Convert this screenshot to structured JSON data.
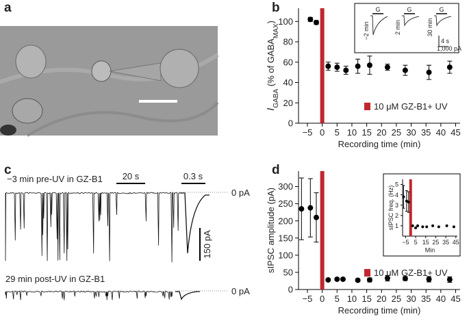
{
  "panel_labels": [
    "a",
    "b",
    "c",
    "d"
  ],
  "chart_data": [
    {
      "type": "scatter",
      "x": [
        -4,
        -2,
        2,
        5,
        8,
        12,
        16,
        22,
        28,
        36,
        43
      ],
      "values": [
        102,
        99,
        56,
        55,
        52,
        56,
        57,
        55,
        52,
        50,
        55
      ],
      "errors": [
        2,
        2,
        4,
        4,
        4,
        7,
        9,
        3,
        5,
        7,
        6
      ],
      "color": "#000000",
      "bar": {
        "name": "10 μM GZ-B1+ UV",
        "x": 0,
        "color": "#c0282e"
      },
      "legend": "lower right",
      "xlim": [
        -8,
        46.5
      ],
      "ylim": [
        0,
        113
      ],
      "xticks": [
        {
          "value": -5,
          "label": "−5"
        },
        0,
        5,
        10,
        15,
        20,
        25,
        30,
        35,
        40,
        45
      ],
      "yticks": [
        0,
        20,
        40,
        60,
        80,
        100
      ],
      "xlabel": "Recording time (min)",
      "ylabel": [
        {
          "text": "I",
          "sub": false
        },
        {
          "text": "GABA",
          "sub": true
        },
        {
          "text": " (% of GABA",
          "sub": false
        },
        {
          "text": "MAX",
          "sub": true
        },
        {
          "text": ")",
          "sub": false
        }
      ]
    },
    {
      "type": "scatter",
      "x": [
        -7,
        -4,
        -2,
        2,
        5,
        7,
        12,
        16,
        22,
        28,
        36,
        43
      ],
      "values": [
        235,
        238,
        210,
        28,
        30,
        30,
        27,
        28,
        33,
        32,
        30,
        29
      ],
      "errors": [
        90,
        85,
        72,
        3,
        3,
        3,
        4,
        6,
        8,
        6,
        8,
        8
      ],
      "color": "#000000",
      "bar": {
        "name": "10 μM GZ-B1+ UV",
        "x": 0,
        "color": "#c0282e"
      },
      "legend": "lower right",
      "xlim": [
        -8,
        46.5
      ],
      "ylim": [
        0,
        345
      ],
      "xticks": [
        {
          "value": -5,
          "label": "−5"
        },
        0,
        5,
        10,
        15,
        20,
        25,
        30,
        35,
        40,
        45
      ],
      "yticks": [
        0,
        50,
        100,
        150,
        200,
        250,
        300
      ],
      "xlabel": "Recording time (min)",
      "ylabel": "sIPSC amplitude (pA)"
    },
    {
      "type": "scatter",
      "x": [
        -7,
        -4,
        -2,
        2,
        5,
        7,
        12,
        16,
        22,
        28,
        36,
        43
      ],
      "values": [
        3.8,
        3.4,
        3.3,
        1.0,
        0.8,
        1.0,
        0.9,
        0.9,
        1.0,
        0.9,
        1.0,
        0.9
      ],
      "errors": [
        1.1,
        1.0,
        1.0,
        null,
        null,
        null,
        null,
        null,
        null,
        null,
        null,
        null
      ],
      "color": "#000000",
      "bar": {
        "x": 0,
        "color": "#c0282e"
      },
      "xlim": [
        -8,
        46.5
      ],
      "ylim": [
        0,
        5.5
      ],
      "xticks": [
        {
          "value": -5,
          "label": "−5"
        },
        5,
        15,
        25,
        35,
        45
      ],
      "yticks": [
        1,
        2,
        3,
        4,
        5
      ],
      "xlabel": "Min",
      "ylabel": "sIPSC freq. (Hz)"
    }
  ],
  "inset_b": {
    "stimulus": [
      "G",
      "G",
      "G"
    ],
    "times": [
      "−2 min",
      "2 min",
      "30 min"
    ],
    "scale_time": "4 s",
    "scale_amp": "1,000 pA"
  },
  "panel_c": {
    "pre_label": "−3 min pre-UV in GZ-B1",
    "post_label": "29 min post-UV in GZ-B1",
    "scale_long": "20 s",
    "scale_short": "0.3 s",
    "zero_pre": "0 pA",
    "zero_post": "0 pA",
    "scale_amp": "150 pA"
  }
}
